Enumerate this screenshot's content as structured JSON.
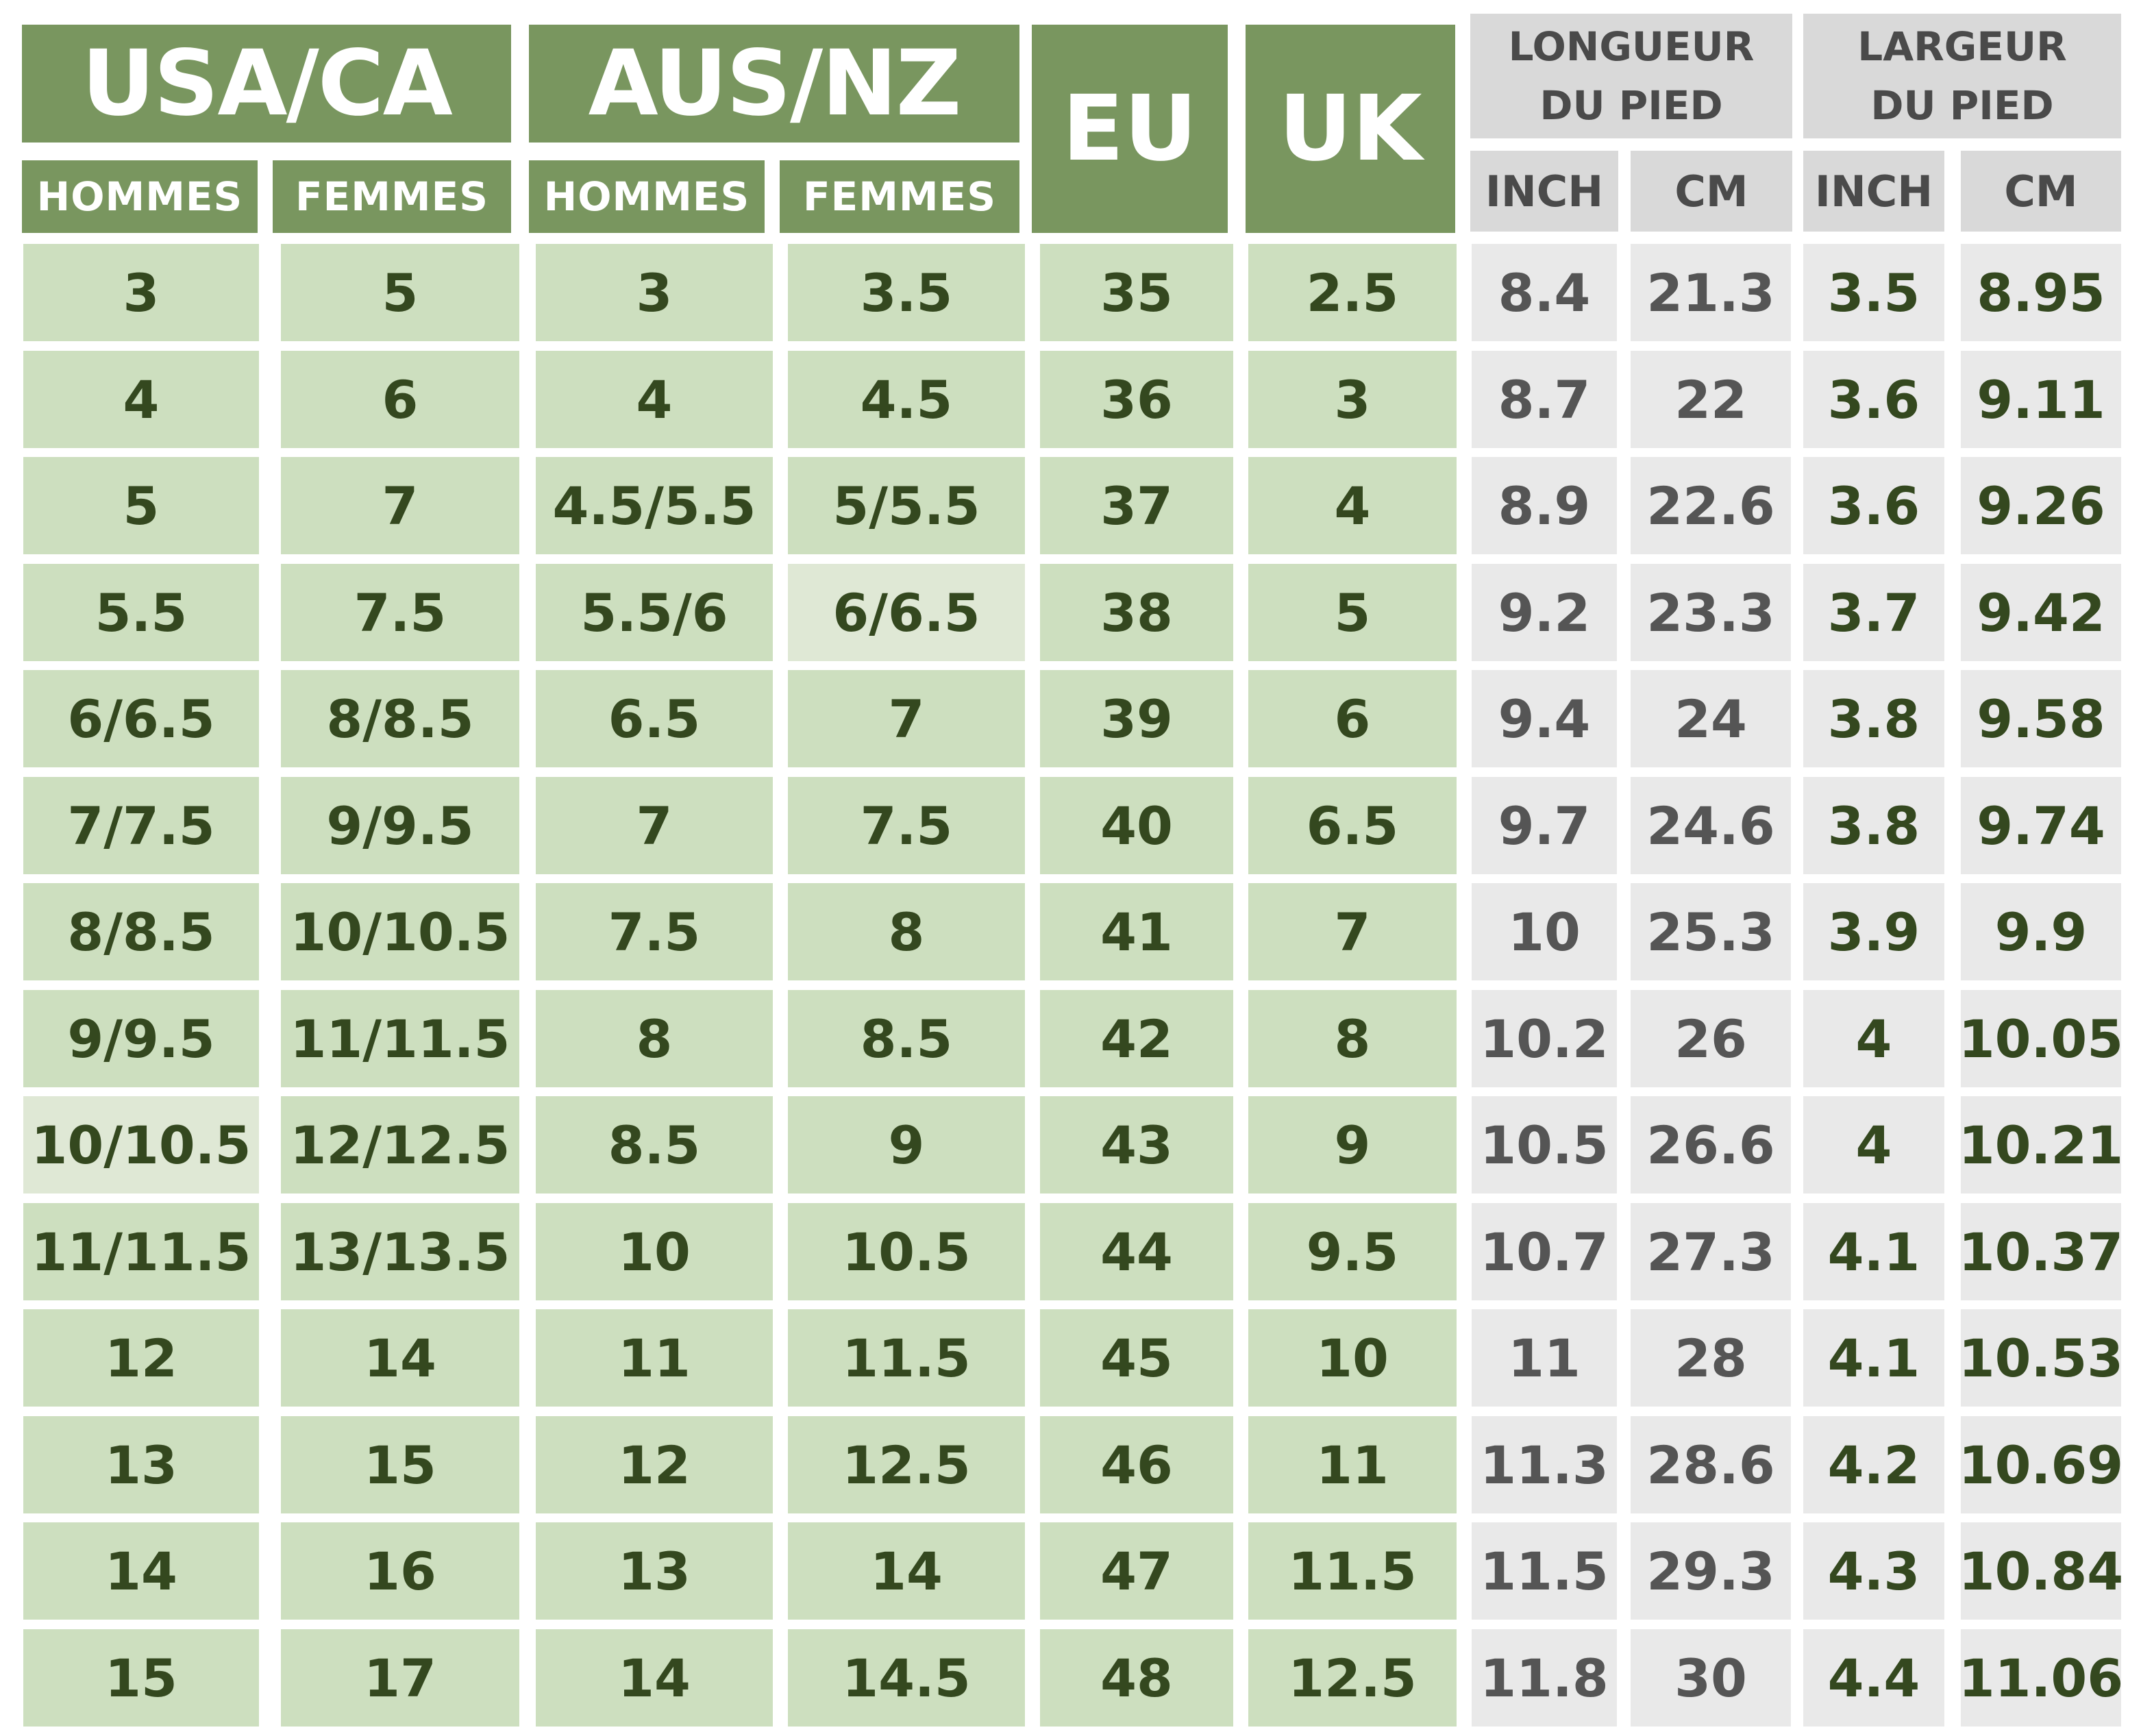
{
  "header": {
    "usa_ca": "USA/CA",
    "aus_nz": "AUS/NZ",
    "eu": "EU",
    "uk": "UK",
    "usa_men": "HOMMES",
    "usa_women": "FEMMES",
    "aus_men": "HOMMES",
    "aus_women": "FEMMES",
    "length_line1": "LONGUEUR",
    "length_line2": "DU PIED",
    "width_line1": "LARGEUR",
    "width_line2": "DU PIED",
    "length_inch": "INCH",
    "length_cm": "CM",
    "width_inch": "INCH",
    "width_cm": "CM"
  },
  "rows": [
    {
      "usa_men": "3",
      "usa_women": "5",
      "aus_men": "3",
      "aus_women": "3.5",
      "eu": "35",
      "uk": "2.5",
      "len_inch": "8.4",
      "len_cm": "21.3",
      "wid_inch": "3.5",
      "wid_cm": "8.95"
    },
    {
      "usa_men": "4",
      "usa_women": "6",
      "aus_men": "4",
      "aus_women": "4.5",
      "eu": "36",
      "uk": "3",
      "len_inch": "8.7",
      "len_cm": "22",
      "wid_inch": "3.6",
      "wid_cm": "9.11"
    },
    {
      "usa_men": "5",
      "usa_women": "7",
      "aus_men": "4.5/5.5",
      "aus_women": "5/5.5",
      "eu": "37",
      "uk": "4",
      "len_inch": "8.9",
      "len_cm": "22.6",
      "wid_inch": "3.6",
      "wid_cm": "9.26"
    },
    {
      "usa_men": "5.5",
      "usa_women": "7.5",
      "aus_men": "5.5/6",
      "aus_women": "6/6.5",
      "eu": "38",
      "uk": "5",
      "len_inch": "9.2",
      "len_cm": "23.3",
      "wid_inch": "3.7",
      "wid_cm": "9.42"
    },
    {
      "usa_men": "6/6.5",
      "usa_women": "8/8.5",
      "aus_men": "6.5",
      "aus_women": "7",
      "eu": "39",
      "uk": "6",
      "len_inch": "9.4",
      "len_cm": "24",
      "wid_inch": "3.8",
      "wid_cm": "9.58"
    },
    {
      "usa_men": "7/7.5",
      "usa_women": "9/9.5",
      "aus_men": "7",
      "aus_women": "7.5",
      "eu": "40",
      "uk": "6.5",
      "len_inch": "9.7",
      "len_cm": "24.6",
      "wid_inch": "3.8",
      "wid_cm": "9.74"
    },
    {
      "usa_men": "8/8.5",
      "usa_women": "10/10.5",
      "aus_men": "7.5",
      "aus_women": "8",
      "eu": "41",
      "uk": "7",
      "len_inch": "10",
      "len_cm": "25.3",
      "wid_inch": "3.9",
      "wid_cm": "9.9"
    },
    {
      "usa_men": "9/9.5",
      "usa_women": "11/11.5",
      "aus_men": "8",
      "aus_women": "8.5",
      "eu": "42",
      "uk": "8",
      "len_inch": "10.2",
      "len_cm": "26",
      "wid_inch": "4",
      "wid_cm": "10.05"
    },
    {
      "usa_men": "10/10.5",
      "usa_women": "12/12.5",
      "aus_men": "8.5",
      "aus_women": "9",
      "eu": "43",
      "uk": "9",
      "len_inch": "10.5",
      "len_cm": "26.6",
      "wid_inch": "4",
      "wid_cm": "10.21"
    },
    {
      "usa_men": "11/11.5",
      "usa_women": "13/13.5",
      "aus_men": "10",
      "aus_women": "10.5",
      "eu": "44",
      "uk": "9.5",
      "len_inch": "10.7",
      "len_cm": "27.3",
      "wid_inch": "4.1",
      "wid_cm": "10.37"
    },
    {
      "usa_men": "12",
      "usa_women": "14",
      "aus_men": "11",
      "aus_women": "11.5",
      "eu": "45",
      "uk": "10",
      "len_inch": "11",
      "len_cm": "28",
      "wid_inch": "4.1",
      "wid_cm": "10.53"
    },
    {
      "usa_men": "13",
      "usa_women": "15",
      "aus_men": "12",
      "aus_women": "12.5",
      "eu": "46",
      "uk": "11",
      "len_inch": "11.3",
      "len_cm": "28.6",
      "wid_inch": "4.2",
      "wid_cm": "10.69"
    },
    {
      "usa_men": "14",
      "usa_women": "16",
      "aus_men": "13",
      "aus_women": "14",
      "eu": "47",
      "uk": "11.5",
      "len_inch": "11.5",
      "len_cm": "29.3",
      "wid_inch": "4.3",
      "wid_cm": "10.84"
    },
    {
      "usa_men": "15",
      "usa_women": "17",
      "aus_men": "14",
      "aus_women": "14.5",
      "eu": "48",
      "uk": "12.5",
      "len_inch": "11.8",
      "len_cm": "30",
      "wid_inch": "4.4",
      "wid_cm": "11.06"
    }
  ]
}
